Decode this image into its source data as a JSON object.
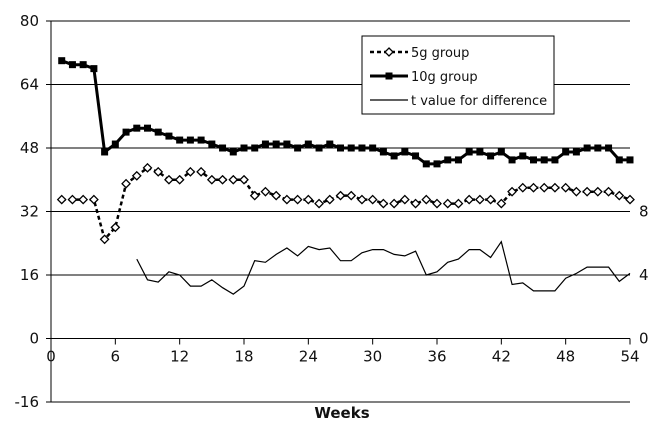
{
  "chart_data": {
    "type": "line",
    "xlabel": "Weeks",
    "x_ticks": [
      0,
      6,
      12,
      18,
      24,
      30,
      36,
      42,
      48,
      54
    ],
    "y_ticks": [
      -16,
      0,
      16,
      32,
      48,
      64,
      80
    ],
    "y2_ticks": [
      0,
      4,
      8
    ],
    "ylim": [
      -16,
      80
    ],
    "xlim": [
      0,
      54
    ],
    "y2lim": [
      0,
      8
    ],
    "grid": "horizontal",
    "legend_position": "top-right",
    "series": [
      {
        "name": "5g group",
        "axis": "left",
        "style": "dashed-diamond",
        "color": "#000000",
        "x": [
          1,
          2,
          3,
          4,
          5,
          6,
          7,
          8,
          9,
          10,
          11,
          12,
          13,
          14,
          15,
          16,
          17,
          18,
          19,
          20,
          21,
          22,
          23,
          24,
          25,
          26,
          27,
          28,
          29,
          30,
          31,
          32,
          33,
          34,
          35,
          36,
          37,
          38,
          39,
          40,
          41,
          42,
          43,
          44,
          45,
          46,
          47,
          48,
          49,
          50,
          51,
          52,
          53,
          54
        ],
        "values": [
          35,
          35,
          35,
          35,
          25,
          28,
          39,
          41,
          43,
          42,
          40,
          40,
          42,
          42,
          40,
          40,
          40,
          40,
          36,
          37,
          36,
          35,
          35,
          35,
          34,
          35,
          36,
          36,
          35,
          35,
          34,
          34,
          35,
          34,
          35,
          34,
          34,
          34,
          35,
          35,
          35,
          34,
          37,
          38,
          38,
          38,
          38,
          38,
          37,
          37,
          37,
          37,
          36,
          35
        ]
      },
      {
        "name": "10g group",
        "axis": "left",
        "style": "solid-square",
        "color": "#000000",
        "x": [
          1,
          2,
          3,
          4,
          5,
          6,
          7,
          8,
          9,
          10,
          11,
          12,
          13,
          14,
          15,
          16,
          17,
          18,
          19,
          20,
          21,
          22,
          23,
          24,
          25,
          26,
          27,
          28,
          29,
          30,
          31,
          32,
          33,
          34,
          35,
          36,
          37,
          38,
          39,
          40,
          41,
          42,
          43,
          44,
          45,
          46,
          47,
          48,
          49,
          50,
          51,
          52,
          53,
          54
        ],
        "values": [
          70,
          69,
          69,
          68,
          47,
          49,
          52,
          53,
          53,
          52,
          51,
          50,
          50,
          50,
          49,
          48,
          47,
          48,
          48,
          49,
          49,
          49,
          48,
          49,
          48,
          49,
          48,
          48,
          48,
          48,
          47,
          46,
          47,
          46,
          44,
          44,
          45,
          45,
          47,
          47,
          46,
          47,
          45,
          46,
          45,
          45,
          45,
          47,
          47,
          48,
          48,
          48,
          45,
          45
        ]
      },
      {
        "name": "t value for difference",
        "axis": "right",
        "style": "solid-thin",
        "color": "#000000",
        "x": [
          8,
          9,
          10,
          11,
          12,
          13,
          14,
          15,
          16,
          17,
          18,
          19,
          20,
          21,
          22,
          23,
          24,
          25,
          26,
          27,
          28,
          29,
          30,
          31,
          32,
          33,
          34,
          35,
          36,
          37,
          38,
          39,
          40,
          41,
          42,
          43,
          44,
          45,
          46,
          47,
          48,
          49,
          50,
          51,
          52,
          53,
          54
        ],
        "values": [
          5,
          3.7,
          3.55,
          4.2,
          4.0,
          3.3,
          3.3,
          3.7,
          3.2,
          2.8,
          3.3,
          4.9,
          4.8,
          5.3,
          5.7,
          5.2,
          5.8,
          5.6,
          5.7,
          4.9,
          4.9,
          5.4,
          5.6,
          5.6,
          5.3,
          5.2,
          5.5,
          4.0,
          4.2,
          4.8,
          5.0,
          5.6,
          5.6,
          5.1,
          6.1,
          3.4,
          3.5,
          3.0,
          3.0,
          3.0,
          3.8,
          4.1,
          4.5,
          4.5,
          4.5,
          3.6,
          4.1
        ]
      }
    ]
  }
}
